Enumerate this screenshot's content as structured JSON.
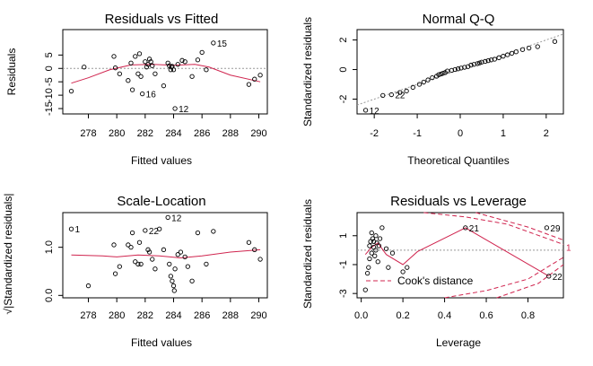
{
  "chart_data": [
    {
      "type": "scatter",
      "title": "Residuals vs Fitted",
      "xlabel": "Fitted values",
      "ylabel": "Residuals",
      "xlim": [
        276.2,
        290.6
      ],
      "ylim": [
        -17,
        14.5
      ],
      "xticks": [
        278,
        280,
        282,
        284,
        286,
        288,
        290
      ],
      "yticks": [
        -15,
        -10,
        -5,
        0,
        5
      ],
      "refline": {
        "kind": "h",
        "value": 0
      },
      "points": [
        [
          276.8,
          -8.5
        ],
        [
          277.7,
          0.5
        ],
        [
          279.8,
          4.5
        ],
        [
          279.9,
          0.2
        ],
        [
          280.2,
          -2
        ],
        [
          280.8,
          -4.5
        ],
        [
          281.0,
          2
        ],
        [
          281.1,
          -8
        ],
        [
          281.3,
          4.5
        ],
        [
          281.5,
          -2
        ],
        [
          281.6,
          5.5
        ],
        [
          281.7,
          -3
        ],
        [
          281.8,
          -9.5
        ],
        [
          282.0,
          2.5
        ],
        [
          282.1,
          0.5
        ],
        [
          282.2,
          1.5
        ],
        [
          282.3,
          3.5
        ],
        [
          282.4,
          2.5
        ],
        [
          282.5,
          1
        ],
        [
          282.7,
          -2
        ],
        [
          283.3,
          -6.5
        ],
        [
          283.6,
          2
        ],
        [
          283.7,
          1
        ],
        [
          283.8,
          -0.5
        ],
        [
          283.85,
          0.5
        ],
        [
          283.9,
          0.8
        ],
        [
          284.0,
          -0.5
        ],
        [
          284.1,
          -15
        ],
        [
          284.3,
          1.5
        ],
        [
          284.6,
          3
        ],
        [
          284.8,
          2.5
        ],
        [
          285.3,
          -3
        ],
        [
          285.7,
          3.2
        ],
        [
          286.0,
          6
        ],
        [
          286.3,
          -0.5
        ],
        [
          286.8,
          9.5
        ],
        [
          289.3,
          -6
        ],
        [
          289.7,
          -4
        ],
        [
          290.1,
          -2.5
        ]
      ],
      "smoother": [
        [
          276.8,
          -5.5
        ],
        [
          278.0,
          -3.5
        ],
        [
          279.5,
          -0.5
        ],
        [
          281.0,
          1.3
        ],
        [
          282.5,
          1.5
        ],
        [
          284.0,
          1.2
        ],
        [
          285.5,
          1.5
        ],
        [
          286.5,
          0.5
        ],
        [
          288.0,
          -2.5
        ],
        [
          290.1,
          -5
        ]
      ],
      "labels": [
        {
          "text": "15",
          "x": 286.8,
          "y": 9.5
        },
        {
          "text": "16",
          "x": 281.8,
          "y": -9.5
        },
        {
          "text": "12",
          "x": 284.1,
          "y": -15
        }
      ]
    },
    {
      "type": "scatter",
      "title": "Normal Q-Q",
      "xlabel": "Theoretical Quantiles",
      "ylabel": "Standardized residuals",
      "xlim": [
        -2.4,
        2.4
      ],
      "ylim": [
        -3.0,
        2.7
      ],
      "xticks": [
        -2,
        -1,
        0,
        1,
        2
      ],
      "yticks": [
        -2,
        0,
        2
      ],
      "refline": {
        "kind": "diag",
        "from": [
          -2.4,
          -2.4
        ],
        "to": [
          2.4,
          2.4
        ]
      },
      "points": [
        [
          -2.2,
          -2.75
        ],
        [
          -1.8,
          -1.75
        ],
        [
          -1.6,
          -1.7
        ],
        [
          -1.4,
          -1.55
        ],
        [
          -1.25,
          -1.45
        ],
        [
          -1.1,
          -1.2
        ],
        [
          -0.95,
          -1.0
        ],
        [
          -0.85,
          -0.85
        ],
        [
          -0.75,
          -0.7
        ],
        [
          -0.65,
          -0.55
        ],
        [
          -0.55,
          -0.45
        ],
        [
          -0.5,
          -0.35
        ],
        [
          -0.45,
          -0.3
        ],
        [
          -0.4,
          -0.25
        ],
        [
          -0.35,
          -0.2
        ],
        [
          -0.3,
          -0.1
        ],
        [
          -0.2,
          -0.05
        ],
        [
          -0.12,
          0
        ],
        [
          -0.05,
          0.05
        ],
        [
          0.02,
          0.1
        ],
        [
          0.1,
          0.15
        ],
        [
          0.18,
          0.2
        ],
        [
          0.25,
          0.3
        ],
        [
          0.32,
          0.35
        ],
        [
          0.4,
          0.4
        ],
        [
          0.45,
          0.45
        ],
        [
          0.5,
          0.5
        ],
        [
          0.58,
          0.55
        ],
        [
          0.65,
          0.6
        ],
        [
          0.72,
          0.65
        ],
        [
          0.8,
          0.7
        ],
        [
          0.9,
          0.8
        ],
        [
          1.0,
          0.9
        ],
        [
          1.1,
          1.0
        ],
        [
          1.2,
          1.1
        ],
        [
          1.3,
          1.2
        ],
        [
          1.45,
          1.35
        ],
        [
          1.6,
          1.45
        ],
        [
          1.8,
          1.55
        ],
        [
          2.2,
          1.9
        ]
      ],
      "labels": [
        {
          "text": "22",
          "x": -1.6,
          "y": -1.7
        },
        {
          "text": "12",
          "x": -2.2,
          "y": -2.75
        }
      ]
    },
    {
      "type": "scatter",
      "title": "Scale-Location",
      "xlabel": "Fitted values",
      "ylabel": "√|Standardized residuals|",
      "xlim": [
        276.2,
        290.6
      ],
      "ylim": [
        -0.05,
        1.72
      ],
      "xticks": [
        278,
        280,
        282,
        284,
        286,
        288,
        290
      ],
      "yticks": [
        0.0,
        1.0
      ],
      "ytick_labels": [
        "0.0",
        "1.0"
      ],
      "points": [
        [
          276.8,
          1.38
        ],
        [
          278.0,
          0.2
        ],
        [
          279.8,
          1.05
        ],
        [
          279.9,
          0.45
        ],
        [
          280.2,
          0.6
        ],
        [
          280.8,
          1.05
        ],
        [
          281.0,
          1.0
        ],
        [
          281.1,
          1.3
        ],
        [
          281.3,
          0.7
        ],
        [
          281.5,
          0.65
        ],
        [
          281.6,
          1.1
        ],
        [
          281.7,
          0.65
        ],
        [
          282.0,
          1.35
        ],
        [
          282.2,
          0.95
        ],
        [
          282.3,
          0.9
        ],
        [
          282.5,
          0.75
        ],
        [
          282.7,
          0.55
        ],
        [
          283.0,
          1.38
        ],
        [
          283.3,
          0.95
        ],
        [
          283.6,
          1.62
        ],
        [
          283.7,
          0.65
        ],
        [
          283.8,
          0.4
        ],
        [
          283.9,
          0.3
        ],
        [
          284.0,
          0.2
        ],
        [
          284.05,
          0.1
        ],
        [
          284.1,
          0.55
        ],
        [
          284.3,
          0.85
        ],
        [
          284.5,
          0.9
        ],
        [
          284.8,
          0.8
        ],
        [
          285.0,
          0.6
        ],
        [
          285.3,
          0.3
        ],
        [
          285.7,
          1.3
        ],
        [
          286.3,
          0.65
        ],
        [
          286.8,
          1.33
        ],
        [
          289.3,
          1.1
        ],
        [
          289.7,
          0.95
        ],
        [
          290.1,
          0.75
        ]
      ],
      "smoother": [
        [
          276.8,
          0.84
        ],
        [
          279.0,
          0.82
        ],
        [
          280.0,
          0.8
        ],
        [
          281.5,
          0.84
        ],
        [
          283.0,
          0.82
        ],
        [
          284.5,
          0.78
        ],
        [
          286.0,
          0.82
        ],
        [
          288.0,
          0.9
        ],
        [
          290.1,
          0.95
        ]
      ],
      "labels": [
        {
          "text": "1",
          "x": 276.8,
          "y": 1.38
        },
        {
          "text": "22",
          "x": 282.0,
          "y": 1.35
        },
        {
          "text": "12",
          "x": 283.6,
          "y": 1.62
        }
      ]
    },
    {
      "type": "scatter",
      "title": "Residuals vs Leverage",
      "xlabel": "Leverage",
      "ylabel": "Standardized residuals",
      "xlim": [
        -0.02,
        0.97
      ],
      "ylim": [
        -3.3,
        2.6
      ],
      "xticks": [
        0.0,
        0.2,
        0.4,
        0.6,
        0.8
      ],
      "xtick_labels": [
        "0.0",
        "0.2",
        "0.4",
        "0.6",
        "0.8"
      ],
      "yticks": [
        -3,
        -1,
        1
      ],
      "refline": {
        "kind": "h",
        "value": 0
      },
      "points": [
        [
          0.02,
          -2.75
        ],
        [
          0.03,
          -1.6
        ],
        [
          0.035,
          -1.2
        ],
        [
          0.04,
          -0.6
        ],
        [
          0.04,
          0.3
        ],
        [
          0.045,
          0.6
        ],
        [
          0.05,
          -0.2
        ],
        [
          0.05,
          1.2
        ],
        [
          0.055,
          0.8
        ],
        [
          0.06,
          0.2
        ],
        [
          0.06,
          0.6
        ],
        [
          0.065,
          -0.4
        ],
        [
          0.07,
          1.0
        ],
        [
          0.07,
          0.0
        ],
        [
          0.075,
          0.5
        ],
        [
          0.08,
          -0.8
        ],
        [
          0.085,
          0.3
        ],
        [
          0.09,
          0.8
        ],
        [
          0.1,
          1.55
        ],
        [
          0.12,
          0.1
        ],
        [
          0.13,
          -1.2
        ],
        [
          0.15,
          -0.2
        ],
        [
          0.2,
          -1.5
        ],
        [
          0.22,
          -1.2
        ],
        [
          0.5,
          1.55
        ],
        [
          0.89,
          1.55
        ],
        [
          0.9,
          -1.8
        ]
      ],
      "smoother": [
        [
          0.02,
          -0.3
        ],
        [
          0.05,
          0.2
        ],
        [
          0.08,
          0.5
        ],
        [
          0.12,
          -0.3
        ],
        [
          0.2,
          -1.0
        ],
        [
          0.27,
          -0.1
        ],
        [
          0.5,
          1.55
        ],
        [
          0.9,
          -1.8
        ]
      ],
      "labels": [
        {
          "text": "21",
          "x": 0.5,
          "y": 1.55
        },
        {
          "text": "29",
          "x": 0.89,
          "y": 1.55
        },
        {
          "text": "22",
          "x": 0.9,
          "y": -1.8
        }
      ],
      "legend_text": "Cook's distance",
      "cook_contour_labels": [
        "1"
      ]
    }
  ]
}
